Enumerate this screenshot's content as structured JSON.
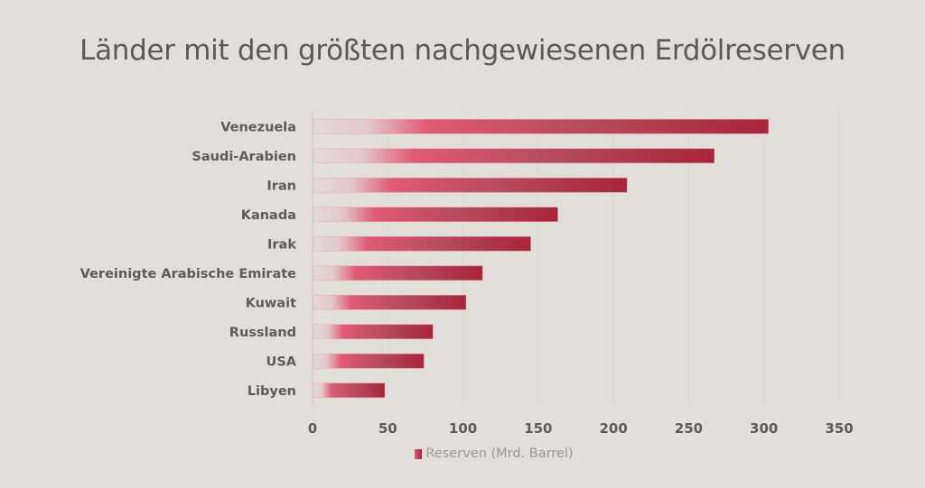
{
  "chart_data": {
    "type": "bar",
    "orientation": "horizontal",
    "title": "Länder mit den größten nachgewiesenen Erdölreserven",
    "categories": [
      "Venezuela",
      "Saudi-Arabien",
      "Iran",
      "Kanada",
      "Irak",
      "Vereinigte Arabische Emirate",
      "Kuwait",
      "Russland",
      "USA",
      "Libyen"
    ],
    "series": [
      {
        "name": "Reserven (Mrd. Barrel)",
        "values": [
          303,
          267,
          209,
          163,
          145,
          113,
          102,
          80,
          74,
          48
        ]
      }
    ],
    "xlabel": "",
    "ylabel": "",
    "xlim": [
      0,
      350
    ],
    "xticks": [
      0,
      50,
      100,
      150,
      200,
      250,
      300,
      350
    ],
    "xtick_labels": [
      "0",
      "50",
      "100",
      "150",
      "200",
      "250",
      "300",
      "350"
    ],
    "grid": "vertical",
    "legend_position": "bottom",
    "colors": {
      "bar_start": "#e2d8da",
      "bar_mid": "#e05a74",
      "bar_end": "#a8243a",
      "background": "#e2dfda"
    }
  }
}
